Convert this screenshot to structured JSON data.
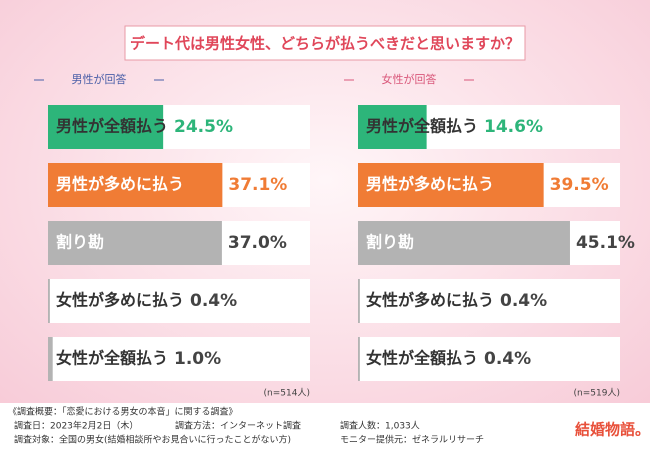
{
  "title": "デート代は男性女性、どちらが払うべきだと思いますか？",
  "chart_data": [
    {
      "type": "bar",
      "subtitle": "男性が回答",
      "categories": [
        "男性が全額払う",
        "男性が多めに払う",
        "割り勘",
        "女性が多めに払う",
        "女性が全額払う"
      ],
      "values": [
        24.5,
        37.1,
        37.0,
        0.4,
        1.0
      ],
      "value_labels": [
        "24.5%",
        "37.1%",
        "37.0%",
        "0.4%",
        "1.0%"
      ],
      "colors": [
        "#2db57a",
        "#f07c35",
        "#b3b3b3",
        "#b3b3b3",
        "#b3b3b3"
      ],
      "note": "(n=514人)"
    },
    {
      "type": "bar",
      "subtitle": "女性が回答",
      "categories": [
        "男性が全額払う",
        "男性が多めに払う",
        "割り勘",
        "女性が多めに払う",
        "女性が全額払う"
      ],
      "values": [
        14.6,
        39.5,
        45.1,
        0.4,
        0.4
      ],
      "value_labels": [
        "14.6%",
        "39.5%",
        "45.1%",
        "0.4%",
        "0.4%"
      ],
      "colors": [
        "#2db57a",
        "#f07c35",
        "#b3b3b3",
        "#b3b3b3",
        "#b3b3b3"
      ],
      "note": "(n=519人)"
    }
  ],
  "footer": {
    "heading": "《調査概要：「恋愛における男女の本音」に関する調査》",
    "items": [
      "調査日：2023年2月2日（木）",
      "調査方法：インターネット調査",
      "調査人数：1,033人",
      "調査対象：全国の男女(結婚相談所やお見合いに行ったことがない方)",
      "モニター提供元：ゼネラルリサーチ"
    ],
    "logo": "結婚物語。"
  }
}
